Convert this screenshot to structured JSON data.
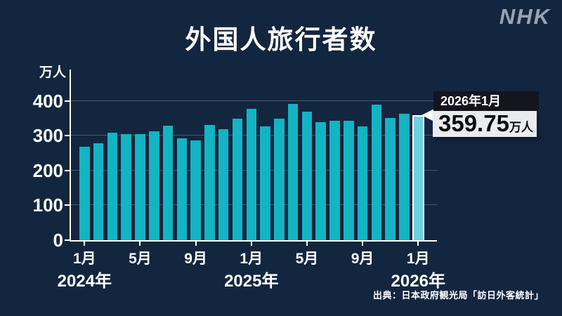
{
  "page": {
    "brand": "NHK",
    "title": "外国人旅行者数",
    "source": "出典：日本政府観光局「訪日外客統計」"
  },
  "colors": {
    "background": "#13263f",
    "bar": "#13b4c3",
    "bar_highlight": "#6dd2de",
    "highlight_border": "#ffffff",
    "axis": "#ffffff",
    "gridline": "rgba(150,170,200,0.38)",
    "callout_header_bg": "#15151d",
    "callout_header_text": "#ffffff",
    "callout_body_bg": "#e9ebef",
    "callout_body_text": "#0c0c0c",
    "logo": "#99a3b1"
  },
  "chart_data": {
    "type": "bar",
    "title": "外国人旅行者数",
    "unit_label": "万人",
    "ylabel": "万人",
    "ylim": [
      0,
      490
    ],
    "yticks": [
      0,
      100,
      200,
      300,
      400
    ],
    "grid": "horizontal gridlines at 100/200/300/400",
    "legend": "none",
    "categories": [
      "2024年1月",
      "2024年2月",
      "2024年3月",
      "2024年4月",
      "2024年5月",
      "2024年6月",
      "2024年7月",
      "2024年8月",
      "2024年9月",
      "2024年10月",
      "2024年11月",
      "2024年12月",
      "2025年1月",
      "2025年2月",
      "2025年3月",
      "2025年4月",
      "2025年5月",
      "2025年6月",
      "2025年7月",
      "2025年8月",
      "2025年9月",
      "2025年10月",
      "2025年11月",
      "2025年12月",
      "2026年1月"
    ],
    "values": [
      268.8,
      278.8,
      308.1,
      304.2,
      304.0,
      313.5,
      329.3,
      293.3,
      287.2,
      331.2,
      318.7,
      348.9,
      378.1,
      325.8,
      349.7,
      390.8,
      369.3,
      337.8,
      343.7,
      342.8,
      326.7,
      389.6,
      350.0,
      364.0,
      359.75
    ],
    "highlight_index": 24,
    "x_tick_labels": [
      {
        "index": 0,
        "label": "1月"
      },
      {
        "index": 4,
        "label": "5月"
      },
      {
        "index": 8,
        "label": "9月"
      },
      {
        "index": 12,
        "label": "1月"
      },
      {
        "index": 16,
        "label": "5月"
      },
      {
        "index": 20,
        "label": "9月"
      },
      {
        "index": 24,
        "label": "1月"
      }
    ],
    "year_labels": [
      {
        "index": 0,
        "label": "2024年"
      },
      {
        "index": 12,
        "label": "2025年"
      },
      {
        "index": 24,
        "label": "2026年"
      }
    ],
    "callout": {
      "label": "2026年1月",
      "value": "359.75",
      "unit": "万人"
    }
  }
}
